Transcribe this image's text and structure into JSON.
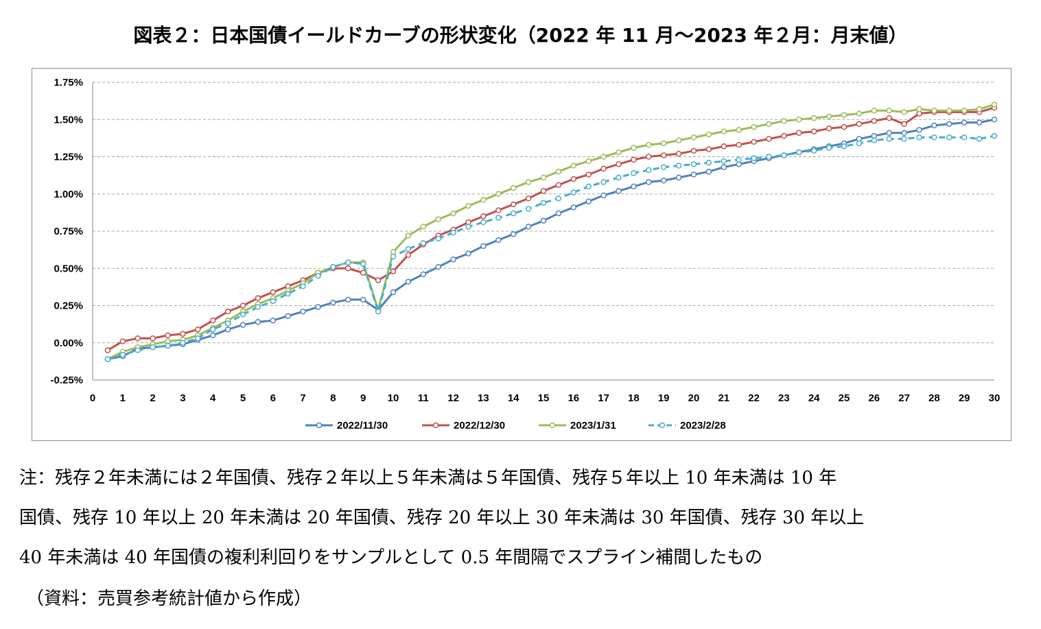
{
  "title": "図表２：日本国債イールドカーブの形状変化（2022 年 11 月～2023 年２月：月末値）",
  "notes": [
    "注：残存２年未満には２年国債、残存２年以上５年未満は５年国債、残存５年以上 10 年未満は 10 年",
    "国債、残存 10 年以上 20 年未満は 20 年国債、残存 20 年以上 30 年未満は 30 年国債、残存 30 年以上",
    "40 年未満は 40 年国債の複利利回りをサンプルとして 0.5 年間隔でスプライン補間したもの"
  ],
  "source": "（資料：売買参考統計値から作成）",
  "chart_data": {
    "type": "line",
    "title": "",
    "xlabel": "",
    "ylabel": "",
    "xlim": [
      0,
      30
    ],
    "ylim": [
      -0.25,
      1.75
    ],
    "x_ticks": [
      "0",
      "1",
      "2",
      "3",
      "4",
      "5",
      "6",
      "7",
      "8",
      "9",
      "10",
      "11",
      "12",
      "13",
      "14",
      "15",
      "16",
      "17",
      "18",
      "19",
      "20",
      "21",
      "22",
      "23",
      "24",
      "25",
      "26",
      "27",
      "28",
      "29",
      "30"
    ],
    "y_ticks": [
      "-0.25%",
      "0.00%",
      "0.25%",
      "0.50%",
      "0.75%",
      "1.00%",
      "1.25%",
      "1.50%",
      "1.75%"
    ],
    "grid": "horizontal dashed",
    "legend_position": "bottom",
    "x": [
      0.5,
      1,
      1.5,
      2,
      2.5,
      3,
      3.5,
      4,
      4.5,
      5,
      5.5,
      6,
      6.5,
      7,
      7.5,
      8,
      8.5,
      9,
      9.5,
      10,
      10.5,
      11,
      11.5,
      12,
      12.5,
      13,
      13.5,
      14,
      14.5,
      15,
      15.5,
      16,
      16.5,
      17,
      17.5,
      18,
      18.5,
      19,
      19.5,
      20,
      20.5,
      21,
      21.5,
      22,
      22.5,
      23,
      23.5,
      24,
      24.5,
      25,
      25.5,
      26,
      26.5,
      27,
      27.5,
      28,
      28.5,
      29,
      29.5,
      30
    ],
    "series": [
      {
        "name": "2022/11/30",
        "color": "#4f81bd",
        "dash": false,
        "values": [
          -0.11,
          -0.09,
          -0.04,
          -0.03,
          -0.02,
          -0.01,
          0.02,
          0.05,
          0.09,
          0.12,
          0.14,
          0.15,
          0.18,
          0.21,
          0.24,
          0.27,
          0.29,
          0.29,
          0.22,
          0.34,
          0.41,
          0.46,
          0.51,
          0.56,
          0.6,
          0.65,
          0.69,
          0.73,
          0.78,
          0.82,
          0.87,
          0.91,
          0.95,
          0.99,
          1.02,
          1.05,
          1.08,
          1.09,
          1.11,
          1.13,
          1.15,
          1.18,
          1.2,
          1.22,
          1.24,
          1.26,
          1.28,
          1.3,
          1.32,
          1.34,
          1.37,
          1.39,
          1.41,
          1.41,
          1.43,
          1.46,
          1.47,
          1.48,
          1.48,
          1.5
        ]
      },
      {
        "name": "2022/12/30",
        "color": "#c0504d",
        "dash": false,
        "values": [
          -0.05,
          0.01,
          0.03,
          0.03,
          0.05,
          0.06,
          0.09,
          0.15,
          0.21,
          0.25,
          0.3,
          0.34,
          0.38,
          0.42,
          0.47,
          0.5,
          0.5,
          0.47,
          0.42,
          0.48,
          0.59,
          0.66,
          0.72,
          0.76,
          0.81,
          0.85,
          0.89,
          0.93,
          0.97,
          1.02,
          1.06,
          1.1,
          1.13,
          1.17,
          1.2,
          1.23,
          1.25,
          1.26,
          1.27,
          1.29,
          1.3,
          1.32,
          1.33,
          1.35,
          1.37,
          1.39,
          1.41,
          1.42,
          1.44,
          1.45,
          1.47,
          1.49,
          1.51,
          1.47,
          1.54,
          1.55,
          1.55,
          1.55,
          1.55,
          1.58
        ]
      },
      {
        "name": "2023/1/31",
        "color": "#9bbb59",
        "dash": false,
        "values": [
          -0.11,
          -0.06,
          -0.03,
          -0.01,
          0.01,
          0.02,
          0.05,
          0.1,
          0.15,
          0.21,
          0.26,
          0.3,
          0.35,
          0.4,
          0.47,
          0.51,
          0.54,
          0.54,
          0.22,
          0.61,
          0.72,
          0.78,
          0.83,
          0.87,
          0.92,
          0.96,
          1.0,
          1.04,
          1.08,
          1.11,
          1.15,
          1.19,
          1.22,
          1.25,
          1.28,
          1.31,
          1.33,
          1.34,
          1.36,
          1.38,
          1.4,
          1.42,
          1.43,
          1.45,
          1.47,
          1.49,
          1.5,
          1.51,
          1.52,
          1.53,
          1.54,
          1.56,
          1.56,
          1.55,
          1.57,
          1.56,
          1.56,
          1.56,
          1.57,
          1.6
        ]
      },
      {
        "name": "2023/2/28",
        "color": "#4bacc6",
        "dash": true,
        "values": [
          -0.11,
          -0.08,
          -0.05,
          -0.03,
          -0.02,
          0.0,
          0.03,
          0.09,
          0.13,
          0.19,
          0.24,
          0.28,
          0.33,
          0.38,
          0.45,
          0.51,
          0.54,
          0.53,
          0.21,
          0.58,
          0.63,
          0.67,
          0.7,
          0.74,
          0.78,
          0.81,
          0.84,
          0.87,
          0.9,
          0.94,
          0.97,
          1.01,
          1.05,
          1.08,
          1.11,
          1.14,
          1.16,
          1.18,
          1.19,
          1.2,
          1.21,
          1.22,
          1.23,
          1.24,
          1.25,
          1.26,
          1.28,
          1.29,
          1.31,
          1.32,
          1.34,
          1.36,
          1.37,
          1.37,
          1.38,
          1.38,
          1.38,
          1.38,
          1.37,
          1.39
        ]
      }
    ]
  }
}
